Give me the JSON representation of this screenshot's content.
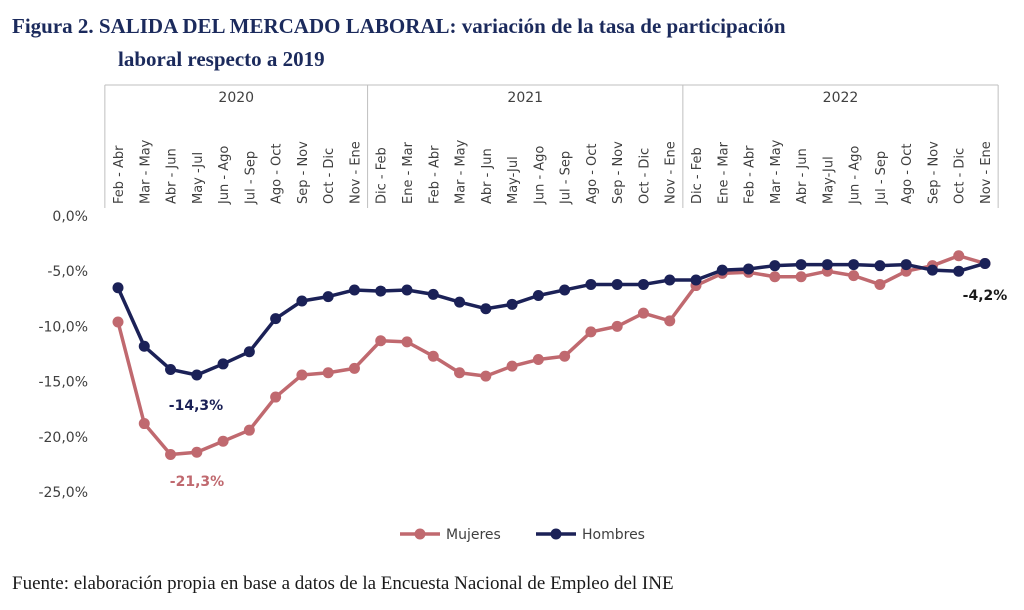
{
  "chart_data": {
    "type": "line",
    "title": [
      "Figura 2. SALIDA DEL MERCADO LABORAL: variación de la tasa de participación",
      "laboral respecto a 2019"
    ],
    "groups": [
      {
        "label": "2020",
        "span": 10
      },
      {
        "label": "2021",
        "span": 12
      },
      {
        "label": "2022",
        "span": 12
      }
    ],
    "categories": [
      "Feb - Abr",
      "Mar - May",
      "Abr - Jun",
      "May -Jul",
      "Jun - Ago",
      "Jul - Sep",
      "Ago - Oct",
      "Sep - Nov",
      "Oct - Dic",
      "Nov - Ene",
      "Dic - Feb",
      "Ene - Mar",
      "Feb - Abr",
      "Mar - May",
      "Abr - Jun",
      "May-Jul",
      "Jun - Ago",
      "Jul - Sep",
      "Ago - Oct",
      "Sep - Nov",
      "Oct - Dic",
      "Nov - Ene",
      "Dic - Feb",
      "Ene - Mar",
      "Feb - Abr",
      "Mar - May",
      "Abr - Jun",
      "May-Jul",
      "Jun - Ago",
      "Jul - Sep",
      "Ago - Oct",
      "Sep - Nov",
      "Oct - Dic",
      "Nov - Ene"
    ],
    "series": [
      {
        "name": "Mujeres",
        "color": "#c0696f",
        "values": [
          -9.6,
          -18.8,
          -21.6,
          -21.4,
          -20.4,
          -19.4,
          -16.4,
          -14.4,
          -14.2,
          -13.8,
          -11.3,
          -11.4,
          -12.7,
          -14.2,
          -14.5,
          -13.6,
          -13.0,
          -12.7,
          -10.5,
          -10.0,
          -8.8,
          -9.5,
          -6.3,
          -5.2,
          -5.1,
          -5.5,
          -5.5,
          -5.0,
          -5.4,
          -6.2,
          -5.0,
          -4.5,
          -3.6,
          -4.3
        ]
      },
      {
        "name": "Hombres",
        "color": "#1b2157",
        "values": [
          -6.5,
          -11.8,
          -13.9,
          -14.4,
          -13.4,
          -12.3,
          -9.3,
          -7.7,
          -7.3,
          -6.7,
          -6.8,
          -6.7,
          -7.1,
          -7.8,
          -8.4,
          -8.0,
          -7.2,
          -6.7,
          -6.2,
          -6.2,
          -6.2,
          -5.8,
          -5.8,
          -4.9,
          -4.8,
          -4.5,
          -4.4,
          -4.4,
          -4.4,
          -4.5,
          -4.4,
          -4.9,
          -5.0,
          -4.3
        ]
      }
    ],
    "ylim": [
      -25,
      0
    ],
    "yticks": [
      {
        "value": 0,
        "label": "0,0%"
      },
      {
        "value": -5,
        "label": "-5,0%"
      },
      {
        "value": -10,
        "label": "-10,0%"
      },
      {
        "value": -15,
        "label": "-15,0%"
      },
      {
        "value": -20,
        "label": "-20,0%"
      },
      {
        "value": -25,
        "label": "-25,0%"
      }
    ],
    "annotations": [
      "-14,3%",
      "-21,3%",
      "-4,2%"
    ],
    "source": "Fuente: elaboración propia en base a datos de la Encuesta Nacional de Empleo del INE"
  }
}
